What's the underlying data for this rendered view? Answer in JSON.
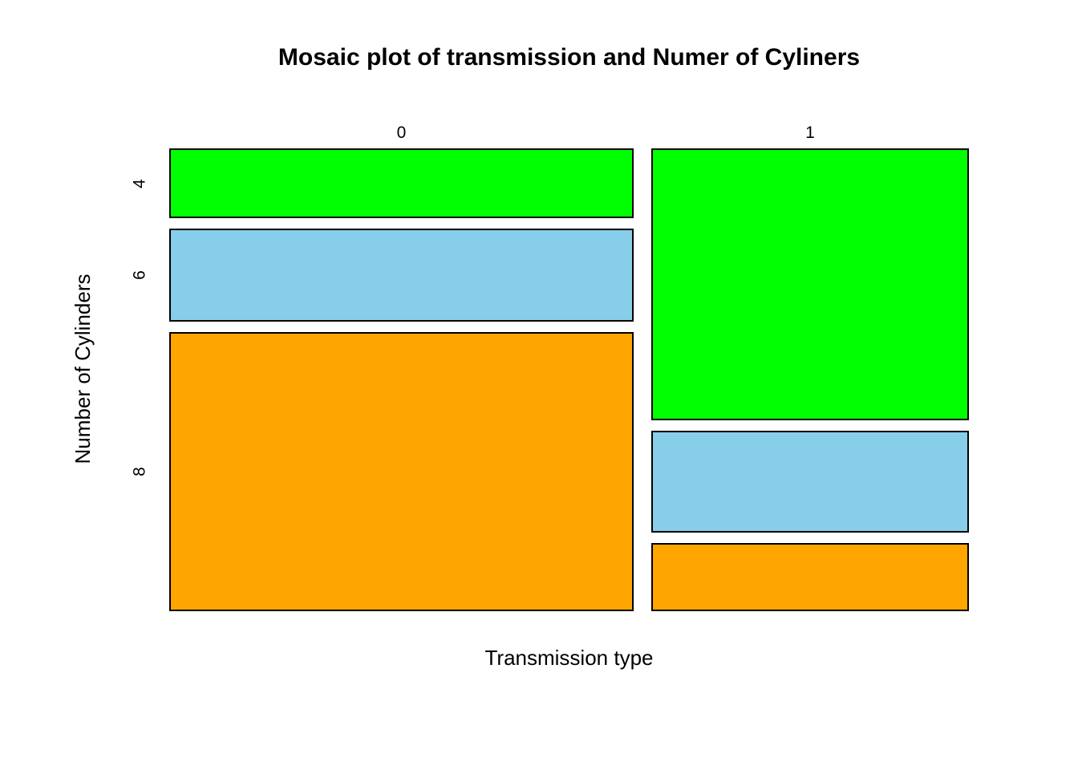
{
  "chart_data": {
    "type": "mosaic",
    "title": "Mosaic plot of transmission and Numer of Cyliners",
    "xlabel": "Transmission type",
    "ylabel": "Number of Cylinders",
    "x_categories": [
      "0",
      "1"
    ],
    "y_categories": [
      "4",
      "6",
      "8"
    ],
    "series": [
      {
        "name": "0",
        "counts": [
          3,
          4,
          12
        ]
      },
      {
        "name": "1",
        "counts": [
          8,
          3,
          2
        ]
      }
    ],
    "column_proportions": [
      0.594,
      0.406
    ],
    "row_proportions_by_column": [
      [
        0.158,
        0.211,
        0.632
      ],
      [
        0.615,
        0.231,
        0.154
      ]
    ],
    "cell_colors": [
      "#00ff00",
      "#87ceeb",
      "#ffa500"
    ],
    "border_color": "#000000",
    "background_color": "#ffffff",
    "legend": "none",
    "grid": false
  }
}
